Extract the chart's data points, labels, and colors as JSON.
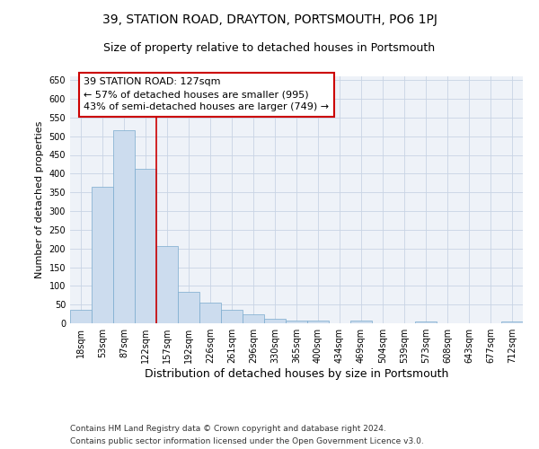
{
  "title": "39, STATION ROAD, DRAYTON, PORTSMOUTH, PO6 1PJ",
  "subtitle": "Size of property relative to detached houses in Portsmouth",
  "xlabel": "Distribution of detached houses by size in Portsmouth",
  "ylabel": "Number of detached properties",
  "footnote1": "Contains HM Land Registry data © Crown copyright and database right 2024.",
  "footnote2": "Contains public sector information licensed under the Open Government Licence v3.0.",
  "annotation_title": "39 STATION ROAD: 127sqm",
  "annotation_line1": "← 57% of detached houses are smaller (995)",
  "annotation_line2": "43% of semi-detached houses are larger (749) →",
  "bar_color": "#ccdcee",
  "bar_edge_color": "#7aaace",
  "vline_color": "#cc0000",
  "vline_x": 3.5,
  "categories": [
    "18sqm",
    "53sqm",
    "87sqm",
    "122sqm",
    "157sqm",
    "192sqm",
    "226sqm",
    "261sqm",
    "296sqm",
    "330sqm",
    "365sqm",
    "400sqm",
    "434sqm",
    "469sqm",
    "504sqm",
    "539sqm",
    "573sqm",
    "608sqm",
    "643sqm",
    "677sqm",
    "712sqm"
  ],
  "values": [
    37,
    365,
    517,
    413,
    206,
    83,
    55,
    36,
    23,
    12,
    8,
    8,
    0,
    8,
    0,
    0,
    4,
    0,
    0,
    0,
    4
  ],
  "ylim": [
    0,
    660
  ],
  "yticks": [
    0,
    50,
    100,
    150,
    200,
    250,
    300,
    350,
    400,
    450,
    500,
    550,
    600,
    650
  ],
  "grid_color": "#c8d4e4",
  "background_color": "#eef2f8",
  "title_fontsize": 10,
  "subtitle_fontsize": 9,
  "ylabel_fontsize": 8,
  "xlabel_fontsize": 9,
  "tick_fontsize": 7,
  "annotation_fontsize": 8,
  "footnote_fontsize": 6.5
}
